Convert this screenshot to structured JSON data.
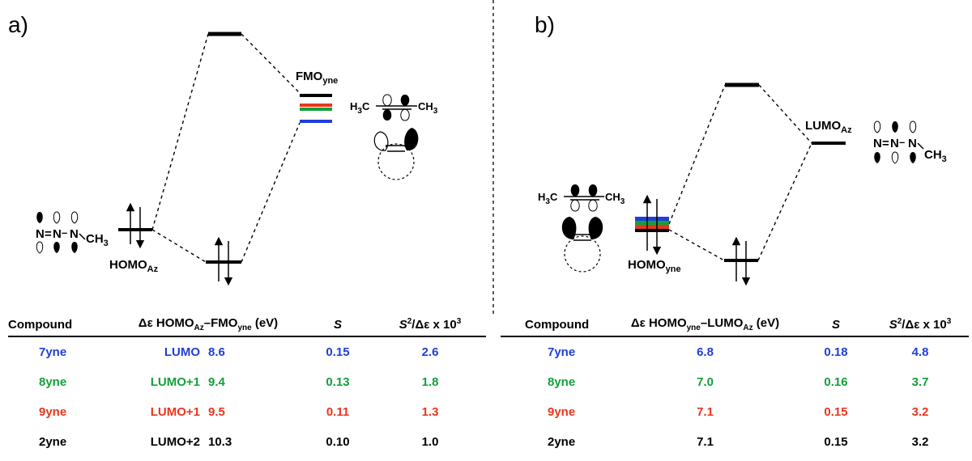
{
  "colors": {
    "blue": "#1f3fd8",
    "green": "#12a03c",
    "red": "#e8361e",
    "black": "#000000"
  },
  "panel_a": {
    "label": "a)",
    "fmo_label": "FMO",
    "fmo_sub": "yne",
    "homo_label": "HOMO",
    "homo_sub": "Az",
    "azide_atoms": {
      "n1": "N",
      "n2": "N",
      "n3": "N",
      "ch3": "CH",
      "ch3_sub": "3",
      "bond": "="
    },
    "alkyne_labels": {
      "left": "H",
      "left_sub": "3",
      "left_c": "C",
      "right": "CH",
      "right_sub": "3"
    },
    "table": {
      "h_compound": "Compound",
      "h_delta_pre": "Δε HOMO",
      "h_delta_sub1": "Az",
      "h_delta_mid": "–FMO",
      "h_delta_sub2": "yne",
      "h_delta_post": " (eV)",
      "h_s": "S",
      "h_ratio_s": "S",
      "h_ratio_sup": "2",
      "h_ratio_rest": "/Δε x 10",
      "h_ratio_sup2": "3",
      "rows": [
        {
          "compound": "7yne",
          "orbital": "LUMO",
          "delta": "8.6",
          "s": "0.15",
          "ratio": "2.6",
          "color": "#1f3fd8"
        },
        {
          "compound": "8yne",
          "orbital": "LUMO+1",
          "delta": "9.4",
          "s": "0.13",
          "ratio": "1.8",
          "color": "#12a03c"
        },
        {
          "compound": "9yne",
          "orbital": "LUMO+1",
          "delta": "9.5",
          "s": "0.11",
          "ratio": "1.3",
          "color": "#e8361e"
        },
        {
          "compound": "2yne",
          "orbital": "LUMO+2",
          "delta": "10.3",
          "s": "0.10",
          "ratio": "1.0",
          "color": "#000000"
        }
      ]
    }
  },
  "panel_b": {
    "label": "b)",
    "lumo_label": "LUMO",
    "lumo_sub": "Az",
    "homo_label": "HOMO",
    "homo_sub": "yne",
    "azide_atoms": {
      "n1": "N",
      "n2": "N",
      "n3": "N",
      "ch3": "CH",
      "ch3_sub": "3",
      "bond": "="
    },
    "alkyne_labels": {
      "left": "H",
      "left_sub": "3",
      "left_c": "C",
      "right": "CH",
      "right_sub": "3"
    },
    "table": {
      "h_compound": "Compound",
      "h_delta_pre": "Δε HOMO",
      "h_delta_sub1": "yne",
      "h_delta_mid": "–LUMO",
      "h_delta_sub2": "Az",
      "h_delta_post": " (eV)",
      "h_s": "S",
      "h_ratio_s": "S",
      "h_ratio_sup": "2",
      "h_ratio_rest": "/Δε x 10",
      "h_ratio_sup2": "3",
      "rows": [
        {
          "compound": "7yne",
          "delta": "6.8",
          "s": "0.18",
          "ratio": "4.8",
          "color": "#1f3fd8"
        },
        {
          "compound": "8yne",
          "delta": "7.0",
          "s": "0.16",
          "ratio": "3.7",
          "color": "#12a03c"
        },
        {
          "compound": "9yne",
          "delta": "7.1",
          "s": "0.15",
          "ratio": "3.2",
          "color": "#e8361e"
        },
        {
          "compound": "2yne",
          "delta": "7.1",
          "s": "0.15",
          "ratio": "3.2",
          "color": "#000000"
        }
      ]
    }
  }
}
